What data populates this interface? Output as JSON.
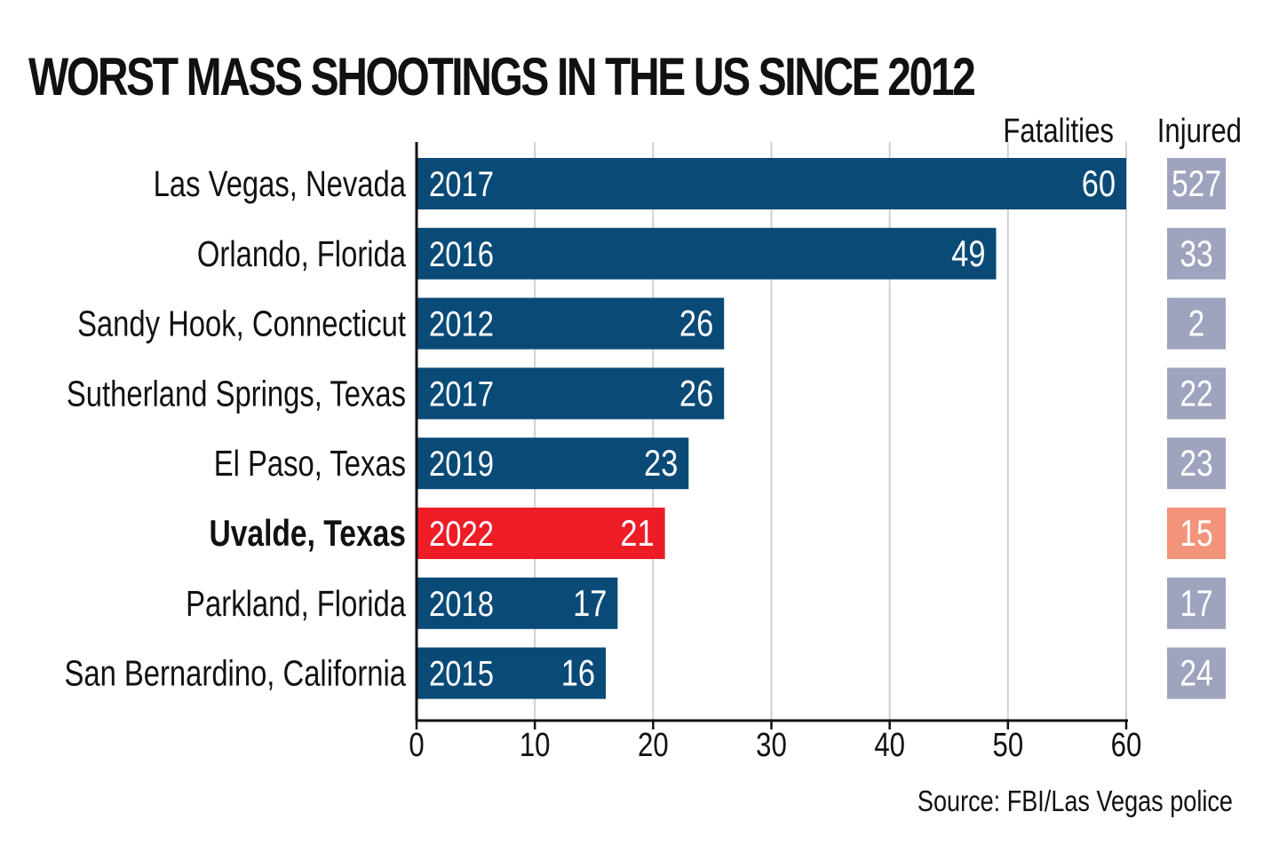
{
  "title": "WORST MASS SHOOTINGS IN THE US SINCE 2012",
  "source": "Source: FBI/Las Vegas police",
  "colors": {
    "bar": "#0a4a77",
    "bar_highlight": "#ee1c25",
    "injured_box": "#9ea3be",
    "injured_box_highlight": "#f3937a",
    "grid": "#d0d0d0",
    "axis": "#111111",
    "text": "#111111"
  },
  "chart_data": {
    "type": "bar",
    "orientation": "horizontal",
    "xlim": [
      0,
      60
    ],
    "ticks": [
      0,
      10,
      20,
      30,
      40,
      50,
      60
    ],
    "grid": true,
    "column_headers": {
      "fatalities": "Fatalities",
      "injured": "Injured"
    },
    "rows": [
      {
        "place": "Las Vegas, Nevada",
        "year": "2017",
        "fatalities": 60,
        "injured": "527",
        "highlight": false
      },
      {
        "place": "Orlando, Florida",
        "year": "2016",
        "fatalities": 49,
        "injured": "33",
        "highlight": false
      },
      {
        "place": "Sandy Hook, Connecticut",
        "year": "2012",
        "fatalities": 26,
        "injured": "2",
        "highlight": false
      },
      {
        "place": "Sutherland Springs, Texas",
        "year": "2017",
        "fatalities": 26,
        "injured": "22",
        "highlight": false
      },
      {
        "place": "El Paso, Texas",
        "year": "2019",
        "fatalities": 23,
        "injured": "23",
        "highlight": false
      },
      {
        "place": "Uvalde, Texas",
        "year": "2022",
        "fatalities": 21,
        "injured": "15",
        "highlight": true
      },
      {
        "place": "Parkland, Florida",
        "year": "2018",
        "fatalities": 17,
        "injured": "17",
        "highlight": false
      },
      {
        "place": "San Bernardino, California",
        "year": "2015",
        "fatalities": 16,
        "injured": "24",
        "highlight": false
      }
    ]
  }
}
